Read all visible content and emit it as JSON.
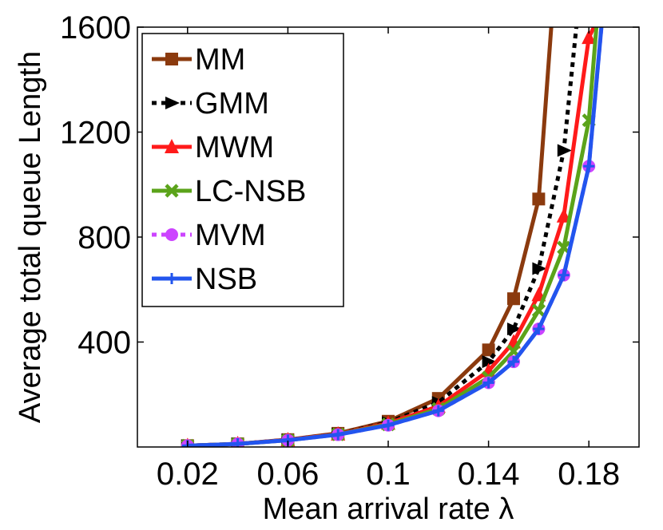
{
  "chart_data": {
    "type": "line",
    "title": "",
    "xlabel": "Mean arrival rate λ",
    "ylabel": "Average total queue Length",
    "xlim": [
      0,
      0.2
    ],
    "ylim": [
      0,
      1600
    ],
    "xticks": [
      0.02,
      0.06,
      0.1,
      0.14,
      0.18
    ],
    "xtick_labels": [
      "0.02",
      "0.06",
      "0.1",
      "0.14",
      "0.18"
    ],
    "yticks": [
      400,
      800,
      1200,
      1600
    ],
    "ytick_labels": [
      "400",
      "800",
      "1200",
      "1600"
    ],
    "grid": false,
    "legend_position": "top-left",
    "series": [
      {
        "name": "MM",
        "color": "#8B3A0E",
        "dash": "solid",
        "marker": "square",
        "x": [
          0.02,
          0.04,
          0.06,
          0.08,
          0.1,
          0.12,
          0.14,
          0.15,
          0.16,
          0.165
        ],
        "y": [
          5,
          12,
          28,
          52,
          98,
          185,
          370,
          565,
          945,
          1600
        ]
      },
      {
        "name": "GMM",
        "color": "#000000",
        "dash": "dotted",
        "marker": "triangle-right",
        "x": [
          0.02,
          0.04,
          0.06,
          0.08,
          0.1,
          0.12,
          0.14,
          0.15,
          0.16,
          0.17,
          0.175
        ],
        "y": [
          5,
          12,
          27,
          50,
          93,
          170,
          325,
          450,
          680,
          1130,
          1600
        ]
      },
      {
        "name": "MWM",
        "color": "#FF1A1A",
        "dash": "solid",
        "marker": "triangle-up",
        "x": [
          0.02,
          0.04,
          0.06,
          0.08,
          0.1,
          0.12,
          0.14,
          0.15,
          0.16,
          0.17,
          0.18,
          0.182
        ],
        "y": [
          5,
          12,
          27,
          49,
          90,
          155,
          290,
          400,
          580,
          880,
          1560,
          1600
        ]
      },
      {
        "name": "LC-NSB",
        "color": "#5BA31A",
        "dash": "solid",
        "marker": "x",
        "x": [
          0.02,
          0.04,
          0.06,
          0.08,
          0.1,
          0.12,
          0.14,
          0.15,
          0.16,
          0.17,
          0.18,
          0.183
        ],
        "y": [
          5,
          12,
          26,
          48,
          86,
          145,
          265,
          365,
          520,
          760,
          1245,
          1600
        ]
      },
      {
        "name": "MVM",
        "color": "#CC44FF",
        "dash": "dotted",
        "marker": "circle",
        "x": [
          0.02,
          0.04,
          0.06,
          0.08,
          0.1,
          0.12,
          0.14,
          0.15,
          0.16,
          0.17,
          0.18,
          0.185
        ],
        "y": [
          5,
          12,
          26,
          47,
          83,
          138,
          245,
          325,
          450,
          655,
          1070,
          1600
        ]
      },
      {
        "name": "NSB",
        "color": "#2255EE",
        "dash": "solid",
        "marker": "plus",
        "x": [
          0.02,
          0.04,
          0.06,
          0.08,
          0.1,
          0.12,
          0.14,
          0.15,
          0.16,
          0.17,
          0.18,
          0.185
        ],
        "y": [
          5,
          12,
          26,
          47,
          83,
          138,
          245,
          325,
          450,
          655,
          1070,
          1600
        ]
      }
    ]
  }
}
